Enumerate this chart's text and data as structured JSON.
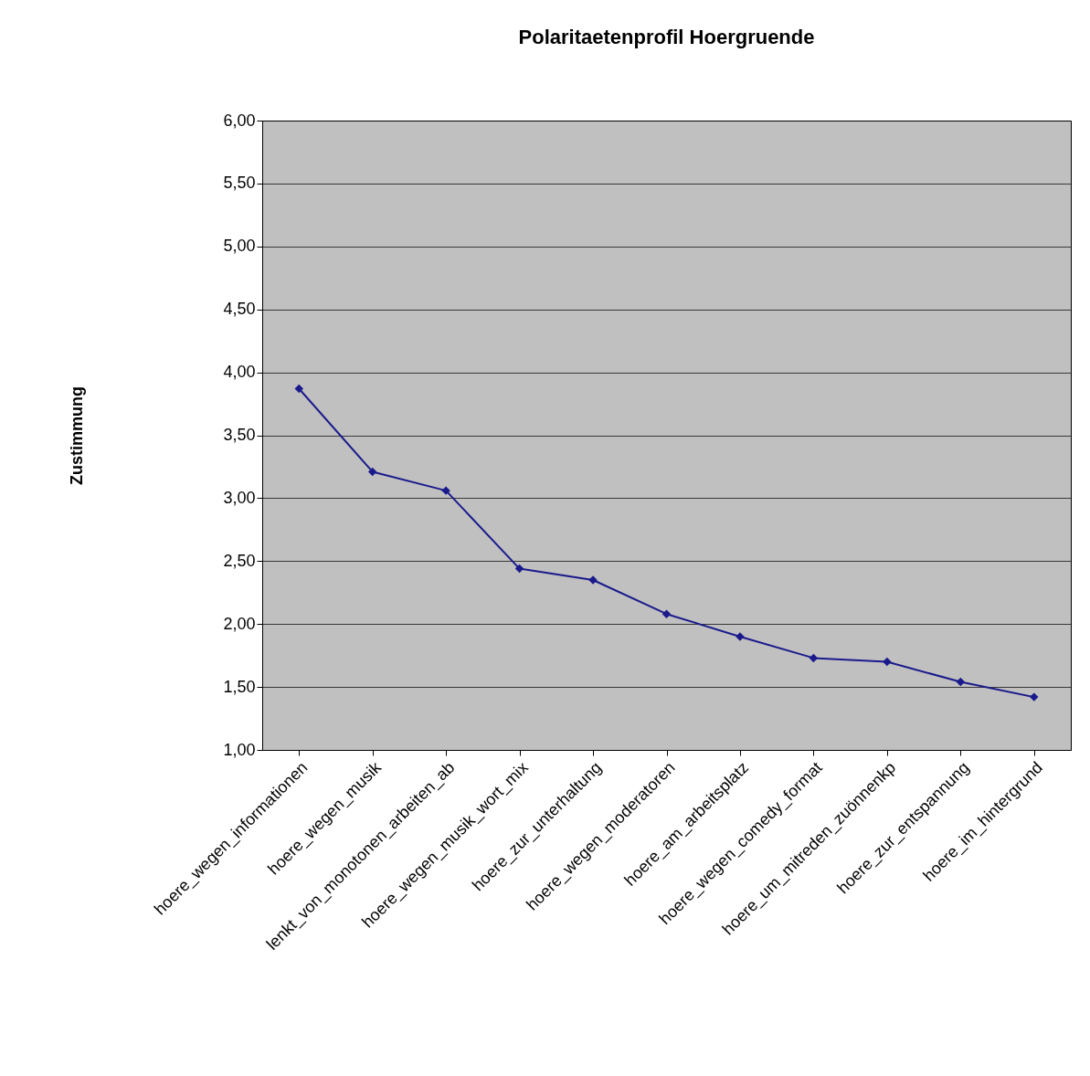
{
  "chart_data": {
    "type": "line",
    "title": "Polaritaetenprofil Hoergruende",
    "ylabel": "Zustimmung",
    "categories": [
      "hoere_wegen_informationen",
      "hoere_wegen_musik",
      "lenkt_von_monotonen_arbeiten_ab",
      "hoere_wegen_musik_wort_mix",
      "hoere_zur_unterhaltung",
      "hoere_wegen_moderatoren",
      "hoere_am_arbeitsplatz",
      "hoere_wegen_comedy_format",
      "hoere_um_mitreden_zuönnenkp",
      "hoere_zur_entspannung",
      "hoere_im_hintergrund"
    ],
    "series": [
      {
        "color": "#1a1a8c",
        "values": [
          3.87,
          3.21,
          3.06,
          2.44,
          2.35,
          2.08,
          1.9,
          1.73,
          1.7,
          1.54,
          1.42
        ]
      }
    ],
    "ylim": [
      1,
      6
    ],
    "yticks": [
      {
        "value": 1,
        "label": "1,00"
      },
      {
        "value": 1.5,
        "label": "1,50"
      },
      {
        "value": 2,
        "label": "2,00"
      },
      {
        "value": 2.5,
        "label": "2,50"
      },
      {
        "value": 3,
        "label": "3,00"
      },
      {
        "value": 3.5,
        "label": "3,50"
      },
      {
        "value": 4,
        "label": "4,00"
      },
      {
        "value": 4.5,
        "label": "4,50"
      },
      {
        "value": 5,
        "label": "5,00"
      },
      {
        "value": 5.5,
        "label": "5,50"
      },
      {
        "value": 6,
        "label": "6,00"
      }
    ],
    "grid": "y",
    "marker": "diamond",
    "line_style": "solid"
  }
}
